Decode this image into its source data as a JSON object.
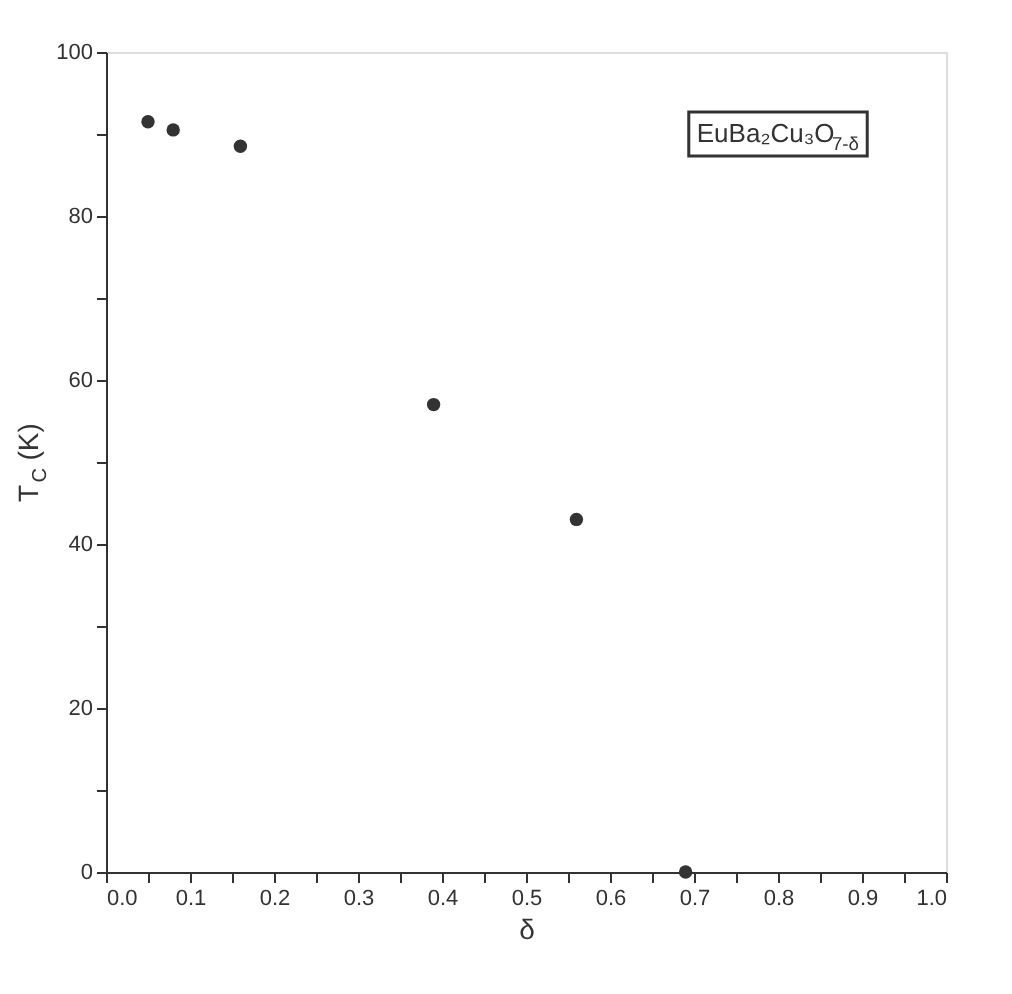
{
  "chart_data": {
    "type": "scatter",
    "xlabel": "δ",
    "ylabel": "T$_{C}$ (K)",
    "x": [
      0.05,
      0.08,
      0.16,
      0.39,
      0.56,
      0.69
    ],
    "series": [
      {
        "color": "#333333",
        "values": [
          91.5,
          90.5,
          88.5,
          57,
          43,
          0
        ]
      }
    ],
    "xlim": [
      0,
      1
    ],
    "ylim": [
      0,
      100
    ],
    "xticks": [
      {
        "value": 0,
        "label": "0.0"
      },
      {
        "value": 0.05,
        "label": null
      },
      0.1,
      {
        "value": 0.15,
        "label": null
      },
      0.2,
      {
        "value": 0.25,
        "label": null
      },
      0.3,
      {
        "value": 0.35,
        "label": null
      },
      0.4,
      {
        "value": 0.45,
        "label": null
      },
      0.5,
      {
        "value": 0.55,
        "label": null
      },
      0.6,
      {
        "value": 0.65,
        "label": null
      },
      0.7,
      {
        "value": 0.75,
        "label": null
      },
      0.8,
      {
        "value": 0.85,
        "label": null
      },
      0.9,
      {
        "value": 0.95,
        "label": null
      },
      {
        "value": 1,
        "label": "1.0"
      }
    ],
    "yticks": [
      0,
      {
        "value": 10,
        "label": null
      },
      20,
      {
        "value": 30,
        "label": null
      },
      40,
      {
        "value": 50,
        "label": null
      },
      60,
      {
        "value": 70,
        "label": null
      },
      80,
      {
        "value": 90,
        "label": null
      },
      100
    ],
    "annotations": [
      "EuBa₂Cu₃O$_{7-δ}$"
    ],
    "marker": "circle",
    "grid": false
  }
}
